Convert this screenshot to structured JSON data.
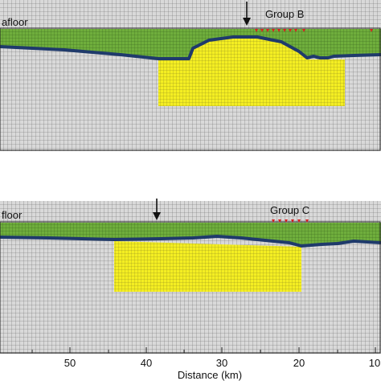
{
  "top_panel": {
    "seafloor_label": "afloor",
    "group_label": "Group B"
  },
  "bottom_panel": {
    "seafloor_label": "floor",
    "group_label": "Group C"
  },
  "x_axis": {
    "label": "Distance (km)",
    "ticks": [
      "50",
      "40",
      "30",
      "20",
      "10"
    ]
  },
  "colors": {
    "water_layer": "#6fae3c",
    "basement_line": "#1f3a6b",
    "mesh_gray": "#d9d9d9",
    "mesh_line": "#5e5e5e",
    "yellow_region": "#f4ee22",
    "receivers": "#d92020",
    "arrow": "#111111"
  }
}
